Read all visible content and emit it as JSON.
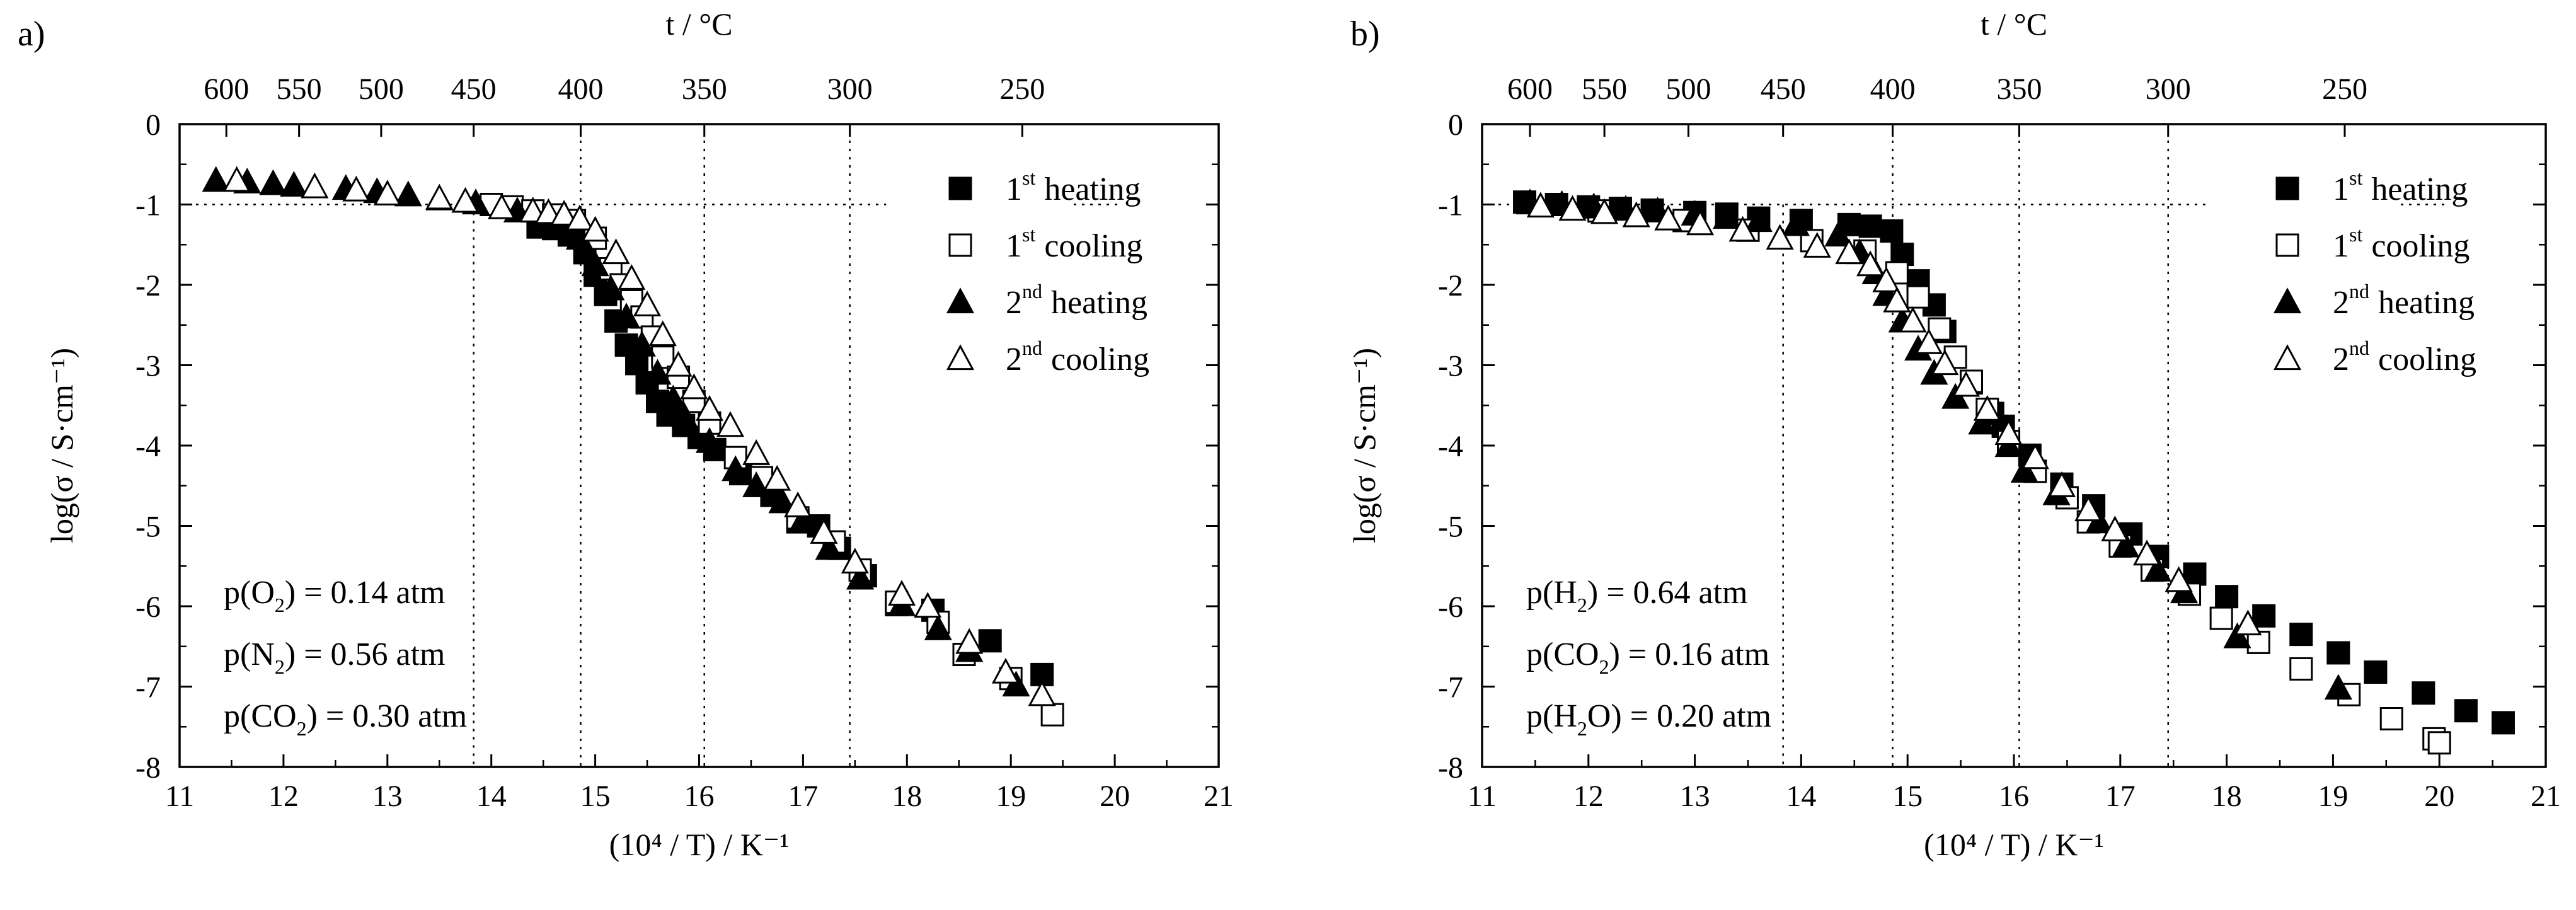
{
  "chart_data": [
    {
      "type": "scatter",
      "panel_label": "a)",
      "xlabel": "(10⁴ / T) / K⁻¹",
      "ylabel": "log(σ / S·cm⁻¹)",
      "top_axis_label": "t / °C",
      "xlim": [
        11,
        21
      ],
      "ylim": [
        -8,
        0
      ],
      "x_ticks": [
        11,
        12,
        13,
        14,
        15,
        16,
        17,
        18,
        19,
        20,
        21
      ],
      "y_ticks": [
        0,
        -1,
        -2,
        -3,
        -4,
        -5,
        -6,
        -7,
        -8
      ],
      "top_ticks": [
        {
          "label": "600",
          "x": 11.45
        },
        {
          "label": "550",
          "x": 12.15
        },
        {
          "label": "500",
          "x": 12.94
        },
        {
          "label": "450",
          "x": 13.83
        },
        {
          "label": "400",
          "x": 14.86
        },
        {
          "label": "350",
          "x": 16.05
        },
        {
          "label": "300",
          "x": 17.45
        },
        {
          "label": "250",
          "x": 19.11
        }
      ],
      "ref_hline": -1,
      "ref_vlines": [
        13.83,
        14.86,
        16.05,
        17.45
      ],
      "legend": [
        {
          "label": "heating",
          "num": "1",
          "sup": "st",
          "marker": "square-filled"
        },
        {
          "label": "cooling",
          "num": "1",
          "sup": "st",
          "marker": "square-open"
        },
        {
          "label": "heating",
          "num": "2",
          "sup": "nd",
          "marker": "triangle-filled"
        },
        {
          "label": "cooling",
          "num": "2",
          "sup": "nd",
          "marker": "triangle-open"
        }
      ],
      "conditions": [
        {
          "pre": "p(O",
          "sub": "2",
          "post": ") = 0.14 atm"
        },
        {
          "pre": "p(N",
          "sub": "2",
          "post": ") = 0.56 atm"
        },
        {
          "pre": "p(CO",
          "sub": "2",
          "post": ") = 0.30 atm"
        }
      ],
      "series": [
        {
          "name": "1st heating",
          "marker": "square-filled",
          "x": [
            14.45,
            14.6,
            14.75,
            14.9,
            15.0,
            15.1,
            15.2,
            15.3,
            15.4,
            15.5,
            15.6,
            15.7,
            15.85,
            16.0,
            16.15,
            16.4,
            16.7,
            16.95,
            17.15,
            17.35,
            17.6,
            17.9,
            18.25,
            18.8,
            19.3
          ],
          "y": [
            -1.28,
            -1.3,
            -1.38,
            -1.6,
            -1.88,
            -2.12,
            -2.45,
            -2.75,
            -2.98,
            -3.22,
            -3.45,
            -3.62,
            -3.75,
            -3.9,
            -4.05,
            -4.35,
            -4.62,
            -4.95,
            -5.0,
            -5.28,
            -5.62,
            -5.98,
            -6.05,
            -6.43,
            -6.85
          ]
        },
        {
          "name": "1st cooling",
          "marker": "square-open",
          "x": [
            14.0,
            14.2,
            14.4,
            14.6,
            14.8,
            15.0,
            15.15,
            15.25,
            15.35,
            15.45,
            15.55,
            15.65,
            15.8,
            15.95,
            16.1,
            16.35,
            16.6,
            16.95,
            17.3,
            17.55,
            17.9,
            18.3,
            18.55,
            19.0,
            19.4
          ],
          "y": [
            -1.0,
            -1.03,
            -1.08,
            -1.13,
            -1.2,
            -1.42,
            -1.8,
            -2.0,
            -2.2,
            -2.4,
            -2.65,
            -2.9,
            -3.15,
            -3.45,
            -3.72,
            -4.15,
            -4.4,
            -4.9,
            -5.2,
            -5.55,
            -5.95,
            -6.2,
            -6.6,
            -6.9,
            -7.35
          ]
        },
        {
          "name": "2nd heating",
          "marker": "triangle-filled",
          "x": [
            11.35,
            11.65,
            11.9,
            12.1,
            12.6,
            12.9,
            13.2,
            13.5,
            13.85,
            14.25,
            14.55,
            14.75,
            14.85,
            15.0,
            15.15,
            15.3,
            15.45,
            15.6,
            15.75,
            15.85,
            16.1,
            16.35,
            16.55,
            16.8,
            17.0,
            17.25,
            17.55,
            17.95,
            18.3,
            18.6,
            19.05
          ],
          "y": [
            -0.7,
            -0.72,
            -0.74,
            -0.76,
            -0.8,
            -0.84,
            -0.88,
            -0.93,
            -0.98,
            -1.08,
            -1.18,
            -1.25,
            -1.42,
            -1.75,
            -2.05,
            -2.4,
            -2.75,
            -3.1,
            -3.42,
            -3.62,
            -3.95,
            -4.3,
            -4.5,
            -4.7,
            -4.92,
            -5.28,
            -5.65,
            -5.98,
            -6.28,
            -6.55,
            -6.98
          ]
        },
        {
          "name": "2nd cooling",
          "marker": "triangle-open",
          "x": [
            11.55,
            12.3,
            12.7,
            13.0,
            13.5,
            13.75,
            14.1,
            14.4,
            14.55,
            14.7,
            14.85,
            15.0,
            15.2,
            15.35,
            15.5,
            15.65,
            15.8,
            15.95,
            16.1,
            16.3,
            16.55,
            16.75,
            16.95,
            17.2,
            17.5,
            17.95,
            18.2,
            18.6,
            18.95,
            19.3
          ],
          "y": [
            -0.7,
            -0.78,
            -0.82,
            -0.87,
            -0.92,
            -0.96,
            -1.04,
            -1.08,
            -1.1,
            -1.12,
            -1.18,
            -1.32,
            -1.6,
            -1.92,
            -2.25,
            -2.62,
            -3.0,
            -3.28,
            -3.55,
            -3.75,
            -4.1,
            -4.42,
            -4.75,
            -5.08,
            -5.45,
            -5.85,
            -6.0,
            -6.45,
            -6.82,
            -7.1
          ]
        }
      ]
    },
    {
      "type": "scatter",
      "panel_label": "b)",
      "xlabel": "(10⁴ / T) / K⁻¹",
      "ylabel": "log(σ / S·cm⁻¹)",
      "top_axis_label": "t / °C",
      "xlim": [
        11,
        21
      ],
      "ylim": [
        -8,
        0
      ],
      "x_ticks": [
        11,
        12,
        13,
        14,
        15,
        16,
        17,
        18,
        19,
        20,
        21
      ],
      "y_ticks": [
        0,
        -1,
        -2,
        -3,
        -4,
        -5,
        -6,
        -7,
        -8
      ],
      "top_ticks": [
        {
          "label": "600",
          "x": 11.45
        },
        {
          "label": "550",
          "x": 12.15
        },
        {
          "label": "500",
          "x": 12.94
        },
        {
          "label": "450",
          "x": 13.83
        },
        {
          "label": "400",
          "x": 14.86
        },
        {
          "label": "350",
          "x": 16.05
        },
        {
          "label": "300",
          "x": 17.45
        },
        {
          "label": "250",
          "x": 19.11
        }
      ],
      "ref_hline": -1,
      "ref_vlines": [
        13.83,
        14.86,
        16.05,
        17.45
      ],
      "legend": [
        {
          "label": "heating",
          "num": "1",
          "sup": "st",
          "marker": "square-filled"
        },
        {
          "label": "cooling",
          "num": "1",
          "sup": "st",
          "marker": "square-open"
        },
        {
          "label": "heating",
          "num": "2",
          "sup": "nd",
          "marker": "triangle-filled"
        },
        {
          "label": "cooling",
          "num": "2",
          "sup": "nd",
          "marker": "triangle-open"
        }
      ],
      "conditions": [
        {
          "pre": "p(H",
          "sub": "2",
          "post": ") = 0.64 atm"
        },
        {
          "pre": "p(CO",
          "sub": "2",
          "post": ") = 0.16 atm"
        },
        {
          "pre": "p(H",
          "sub": "2",
          "post": "O) = 0.20 atm"
        }
      ],
      "series": [
        {
          "name": "1st heating",
          "marker": "square-filled",
          "x": [
            11.4,
            11.7,
            12.0,
            12.3,
            12.6,
            13.0,
            13.3,
            13.6,
            14.0,
            14.45,
            14.65,
            14.85,
            14.95,
            15.1,
            15.25,
            15.35,
            15.6,
            15.8,
            15.9,
            16.15,
            16.45,
            16.75,
            17.1,
            17.35,
            17.7,
            18.0,
            18.35,
            18.7,
            19.05,
            19.4,
            19.85,
            20.25,
            20.6
          ],
          "y": [
            -0.97,
            -1.0,
            -1.03,
            -1.05,
            -1.07,
            -1.1,
            -1.12,
            -1.17,
            -1.2,
            -1.25,
            -1.27,
            -1.33,
            -1.62,
            -1.95,
            -2.25,
            -2.58,
            -3.22,
            -3.6,
            -3.76,
            -4.12,
            -4.48,
            -4.75,
            -5.1,
            -5.38,
            -5.6,
            -5.88,
            -6.12,
            -6.35,
            -6.58,
            -6.82,
            -7.08,
            -7.3,
            -7.45
          ]
        },
        {
          "name": "1st cooling",
          "marker": "square-open",
          "x": [
            12.1,
            12.9,
            13.5,
            14.1,
            14.6,
            14.9,
            15.1,
            15.3,
            15.45,
            15.6,
            15.75,
            15.95,
            16.2,
            16.5,
            16.7,
            17.0,
            17.3,
            17.65,
            17.95,
            18.3,
            18.7,
            19.15,
            19.55,
            19.95,
            20.0
          ],
          "y": [
            -1.08,
            -1.2,
            -1.32,
            -1.45,
            -1.58,
            -1.85,
            -2.15,
            -2.55,
            -2.9,
            -3.2,
            -3.55,
            -3.95,
            -4.32,
            -4.65,
            -4.95,
            -5.25,
            -5.55,
            -5.85,
            -6.15,
            -6.45,
            -6.78,
            -7.1,
            -7.4,
            -7.65,
            -7.7
          ]
        },
        {
          "name": "2nd heating",
          "marker": "triangle-filled",
          "x": [
            11.45,
            11.75,
            12.05,
            12.35,
            12.65,
            13.0,
            13.3,
            13.6,
            13.95,
            14.35,
            14.55,
            14.7,
            14.8,
            14.95,
            15.1,
            15.25,
            15.45,
            15.7,
            15.95,
            16.1,
            16.4,
            16.8,
            17.05,
            17.35,
            17.6,
            18.1,
            19.05
          ],
          "y": [
            -0.98,
            -1.0,
            -1.03,
            -1.06,
            -1.08,
            -1.12,
            -1.16,
            -1.2,
            -1.25,
            -1.38,
            -1.6,
            -1.85,
            -2.12,
            -2.45,
            -2.8,
            -3.1,
            -3.4,
            -3.72,
            -4.0,
            -4.32,
            -4.6,
            -4.95,
            -5.25,
            -5.55,
            -5.82,
            -6.38,
            -7.02
          ]
        },
        {
          "name": "2nd cooling",
          "marker": "triangle-open",
          "x": [
            11.55,
            11.85,
            12.15,
            12.45,
            12.75,
            13.05,
            13.45,
            13.8,
            14.15,
            14.45,
            14.65,
            14.8,
            14.9,
            15.05,
            15.2,
            15.35,
            15.55,
            15.75,
            15.95,
            16.2,
            16.45,
            16.7,
            16.95,
            17.25,
            17.55,
            18.2
          ],
          "y": [
            -1.02,
            -1.06,
            -1.1,
            -1.14,
            -1.18,
            -1.24,
            -1.32,
            -1.42,
            -1.52,
            -1.6,
            -1.75,
            -1.95,
            -2.2,
            -2.45,
            -2.72,
            -2.98,
            -3.25,
            -3.55,
            -3.85,
            -4.15,
            -4.5,
            -4.8,
            -5.05,
            -5.35,
            -5.68,
            -6.22
          ]
        }
      ]
    }
  ]
}
